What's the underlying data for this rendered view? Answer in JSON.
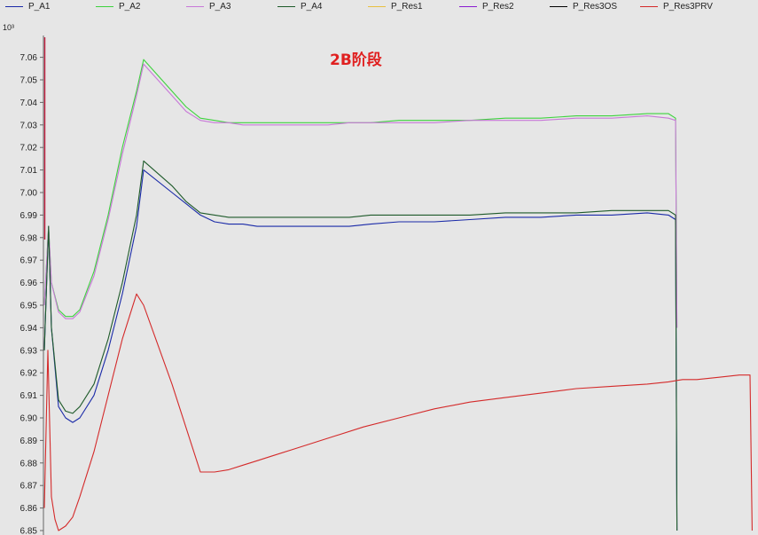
{
  "chart_data": {
    "type": "line",
    "title": "",
    "exponent_label": "10³",
    "annotation": "2B阶段",
    "ylim": [
      6.85,
      7.07
    ],
    "yticks": [
      "6.85",
      "6.86",
      "6.87",
      "6.88",
      "6.89",
      "6.90",
      "6.91",
      "6.92",
      "6.93",
      "6.94",
      "6.95",
      "6.96",
      "6.97",
      "6.98",
      "6.99",
      "7.00",
      "7.01",
      "7.02",
      "7.03",
      "7.04",
      "7.05",
      "7.06"
    ],
    "xlim": [
      0,
      100
    ],
    "grid": false,
    "legend_position": "top",
    "series": [
      {
        "name": "P_A1",
        "color": "#1a2aa8",
        "x": [
          0,
          0.6,
          1,
          2,
          3,
          4,
          5,
          7,
          9,
          11,
          13,
          14,
          18,
          20,
          22,
          24,
          26,
          28,
          30,
          32,
          34,
          36,
          38,
          40,
          43,
          46,
          50,
          55,
          60,
          65,
          70,
          75,
          80,
          85,
          88,
          89,
          89.2
        ],
        "values": [
          6.93,
          6.985,
          6.94,
          6.905,
          6.9,
          6.898,
          6.9,
          6.91,
          6.93,
          6.955,
          6.985,
          7.01,
          7.0,
          6.995,
          6.99,
          6.987,
          6.986,
          6.986,
          6.985,
          6.985,
          6.985,
          6.985,
          6.985,
          6.985,
          6.985,
          6.986,
          6.987,
          6.987,
          6.988,
          6.989,
          6.989,
          6.99,
          6.99,
          6.991,
          6.99,
          6.988,
          6.85
        ]
      },
      {
        "name": "P_A2",
        "color": "#3ed23e",
        "x": [
          0,
          0.6,
          1,
          2,
          3,
          4,
          5,
          7,
          9,
          11,
          13,
          14,
          18,
          20,
          22,
          24,
          26,
          28,
          30,
          32,
          34,
          36,
          38,
          40,
          43,
          46,
          50,
          55,
          60,
          65,
          70,
          75,
          80,
          85,
          88,
          89,
          89.2
        ],
        "values": [
          6.95,
          6.985,
          6.96,
          6.948,
          6.945,
          6.945,
          6.948,
          6.965,
          6.99,
          7.02,
          7.045,
          7.059,
          7.045,
          7.038,
          7.033,
          7.032,
          7.031,
          7.031,
          7.031,
          7.031,
          7.031,
          7.031,
          7.031,
          7.031,
          7.031,
          7.031,
          7.032,
          7.032,
          7.032,
          7.033,
          7.033,
          7.034,
          7.034,
          7.035,
          7.035,
          7.033,
          6.94
        ]
      },
      {
        "name": "P_A3",
        "color": "#c878d8",
        "x": [
          0,
          0.6,
          1,
          2,
          3,
          4,
          5,
          7,
          9,
          11,
          13,
          14,
          18,
          20,
          22,
          24,
          26,
          28,
          30,
          32,
          34,
          36,
          38,
          40,
          43,
          46,
          50,
          55,
          60,
          65,
          70,
          75,
          80,
          85,
          88,
          89,
          89.2
        ],
        "values": [
          6.95,
          6.985,
          6.96,
          6.947,
          6.944,
          6.944,
          6.947,
          6.963,
          6.988,
          7.017,
          7.043,
          7.057,
          7.043,
          7.036,
          7.032,
          7.031,
          7.031,
          7.03,
          7.03,
          7.03,
          7.03,
          7.03,
          7.03,
          7.03,
          7.031,
          7.031,
          7.031,
          7.031,
          7.032,
          7.032,
          7.032,
          7.033,
          7.033,
          7.034,
          7.033,
          7.032,
          6.94
        ]
      },
      {
        "name": "P_A4",
        "color": "#1e5a2a",
        "x": [
          0,
          0.6,
          1,
          2,
          3,
          4,
          5,
          7,
          9,
          11,
          13,
          14,
          18,
          20,
          22,
          24,
          26,
          28,
          30,
          32,
          34,
          36,
          38,
          40,
          43,
          46,
          50,
          55,
          60,
          65,
          70,
          75,
          80,
          85,
          88,
          89,
          89.2
        ],
        "values": [
          6.93,
          6.985,
          6.94,
          6.908,
          6.903,
          6.902,
          6.905,
          6.915,
          6.935,
          6.96,
          6.99,
          7.014,
          7.003,
          6.996,
          6.991,
          6.99,
          6.989,
          6.989,
          6.989,
          6.989,
          6.989,
          6.989,
          6.989,
          6.989,
          6.989,
          6.99,
          6.99,
          6.99,
          6.99,
          6.991,
          6.991,
          6.991,
          6.992,
          6.992,
          6.992,
          6.99,
          6.85
        ]
      },
      {
        "name": "P_Res1",
        "color": "#e8c040",
        "x": [],
        "values": []
      },
      {
        "name": "P_Res2",
        "color": "#8a1cd0",
        "x": [],
        "values": []
      },
      {
        "name": "P_Res3OS",
        "color": "#000000",
        "x": [],
        "values": []
      },
      {
        "name": "P_Res3PRV",
        "color": "#d42a2a",
        "x": [
          0,
          0.5,
          1,
          1.5,
          2,
          3,
          4,
          5,
          7,
          9,
          11,
          13,
          14,
          18,
          22,
          24,
          26,
          28,
          30,
          32,
          35,
          40,
          45,
          50,
          55,
          60,
          65,
          70,
          75,
          80,
          85,
          88,
          90,
          92,
          95,
          98,
          99.5,
          99.8
        ],
        "values": [
          6.86,
          6.93,
          6.865,
          6.855,
          6.85,
          6.852,
          6.856,
          6.865,
          6.885,
          6.91,
          6.935,
          6.955,
          6.95,
          6.915,
          6.876,
          6.876,
          6.877,
          6.879,
          6.881,
          6.883,
          6.886,
          6.891,
          6.896,
          6.9,
          6.904,
          6.907,
          6.909,
          6.911,
          6.913,
          6.914,
          6.915,
          6.916,
          6.917,
          6.917,
          6.918,
          6.919,
          6.919,
          6.85
        ]
      }
    ]
  }
}
